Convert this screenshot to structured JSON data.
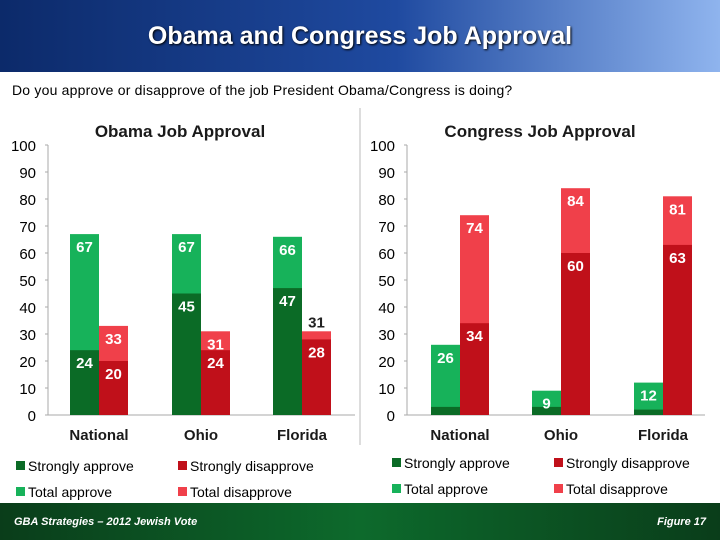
{
  "header": {
    "title": "Obama and Congress Job Approval"
  },
  "question": "Do you approve or disapprove of the job President Obama/Congress is doing?",
  "footer": {
    "left": "GBA Strategies – 2012 Jewish Vote",
    "right": "Figure 17"
  },
  "colors": {
    "strongly_approve": "#0b6b26",
    "total_approve": "#17b25a",
    "strongly_disapprove": "#c0101a",
    "total_disapprove": "#f0404a"
  },
  "chart_data": [
    {
      "type": "bar",
      "title": "Obama Job Approval",
      "categories": [
        "National",
        "Ohio",
        "Florida"
      ],
      "ylim": [
        0,
        100
      ],
      "yticks": [
        0,
        10,
        20,
        30,
        40,
        50,
        60,
        70,
        80,
        90,
        100
      ],
      "series": [
        {
          "name": "Strongly approve",
          "values": [
            24,
            45,
            47
          ]
        },
        {
          "name": "Total approve",
          "values": [
            67,
            67,
            66
          ]
        },
        {
          "name": "Strongly disapprove",
          "values": [
            20,
            24,
            28
          ]
        },
        {
          "name": "Total disapprove",
          "values": [
            33,
            31,
            31
          ]
        }
      ],
      "legend": [
        "Strongly approve",
        "Strongly disapprove",
        "Total approve",
        "Total disapprove"
      ]
    },
    {
      "type": "bar",
      "title": "Congress Job Approval",
      "categories": [
        "National",
        "Ohio",
        "Florida"
      ],
      "ylim": [
        0,
        100
      ],
      "yticks": [
        0,
        10,
        20,
        30,
        40,
        50,
        60,
        70,
        80,
        90,
        100
      ],
      "series": [
        {
          "name": "Strongly approve",
          "values": [
            3,
            3,
            2
          ]
        },
        {
          "name": "Total approve",
          "values": [
            26,
            9,
            12
          ]
        },
        {
          "name": "Strongly disapprove",
          "values": [
            34,
            60,
            63
          ]
        },
        {
          "name": "Total disapprove",
          "values": [
            74,
            84,
            81
          ]
        }
      ],
      "series_labels": {
        "Strongly approve": [
          null,
          null,
          null
        ],
        "Total approve": [
          26,
          9,
          12
        ],
        "Strongly disapprove": [
          34,
          60,
          63
        ],
        "Total disapprove": [
          74,
          84,
          81
        ]
      },
      "legend": [
        "Strongly approve",
        "Strongly disapprove",
        "Total approve",
        "Total disapprove"
      ]
    }
  ]
}
